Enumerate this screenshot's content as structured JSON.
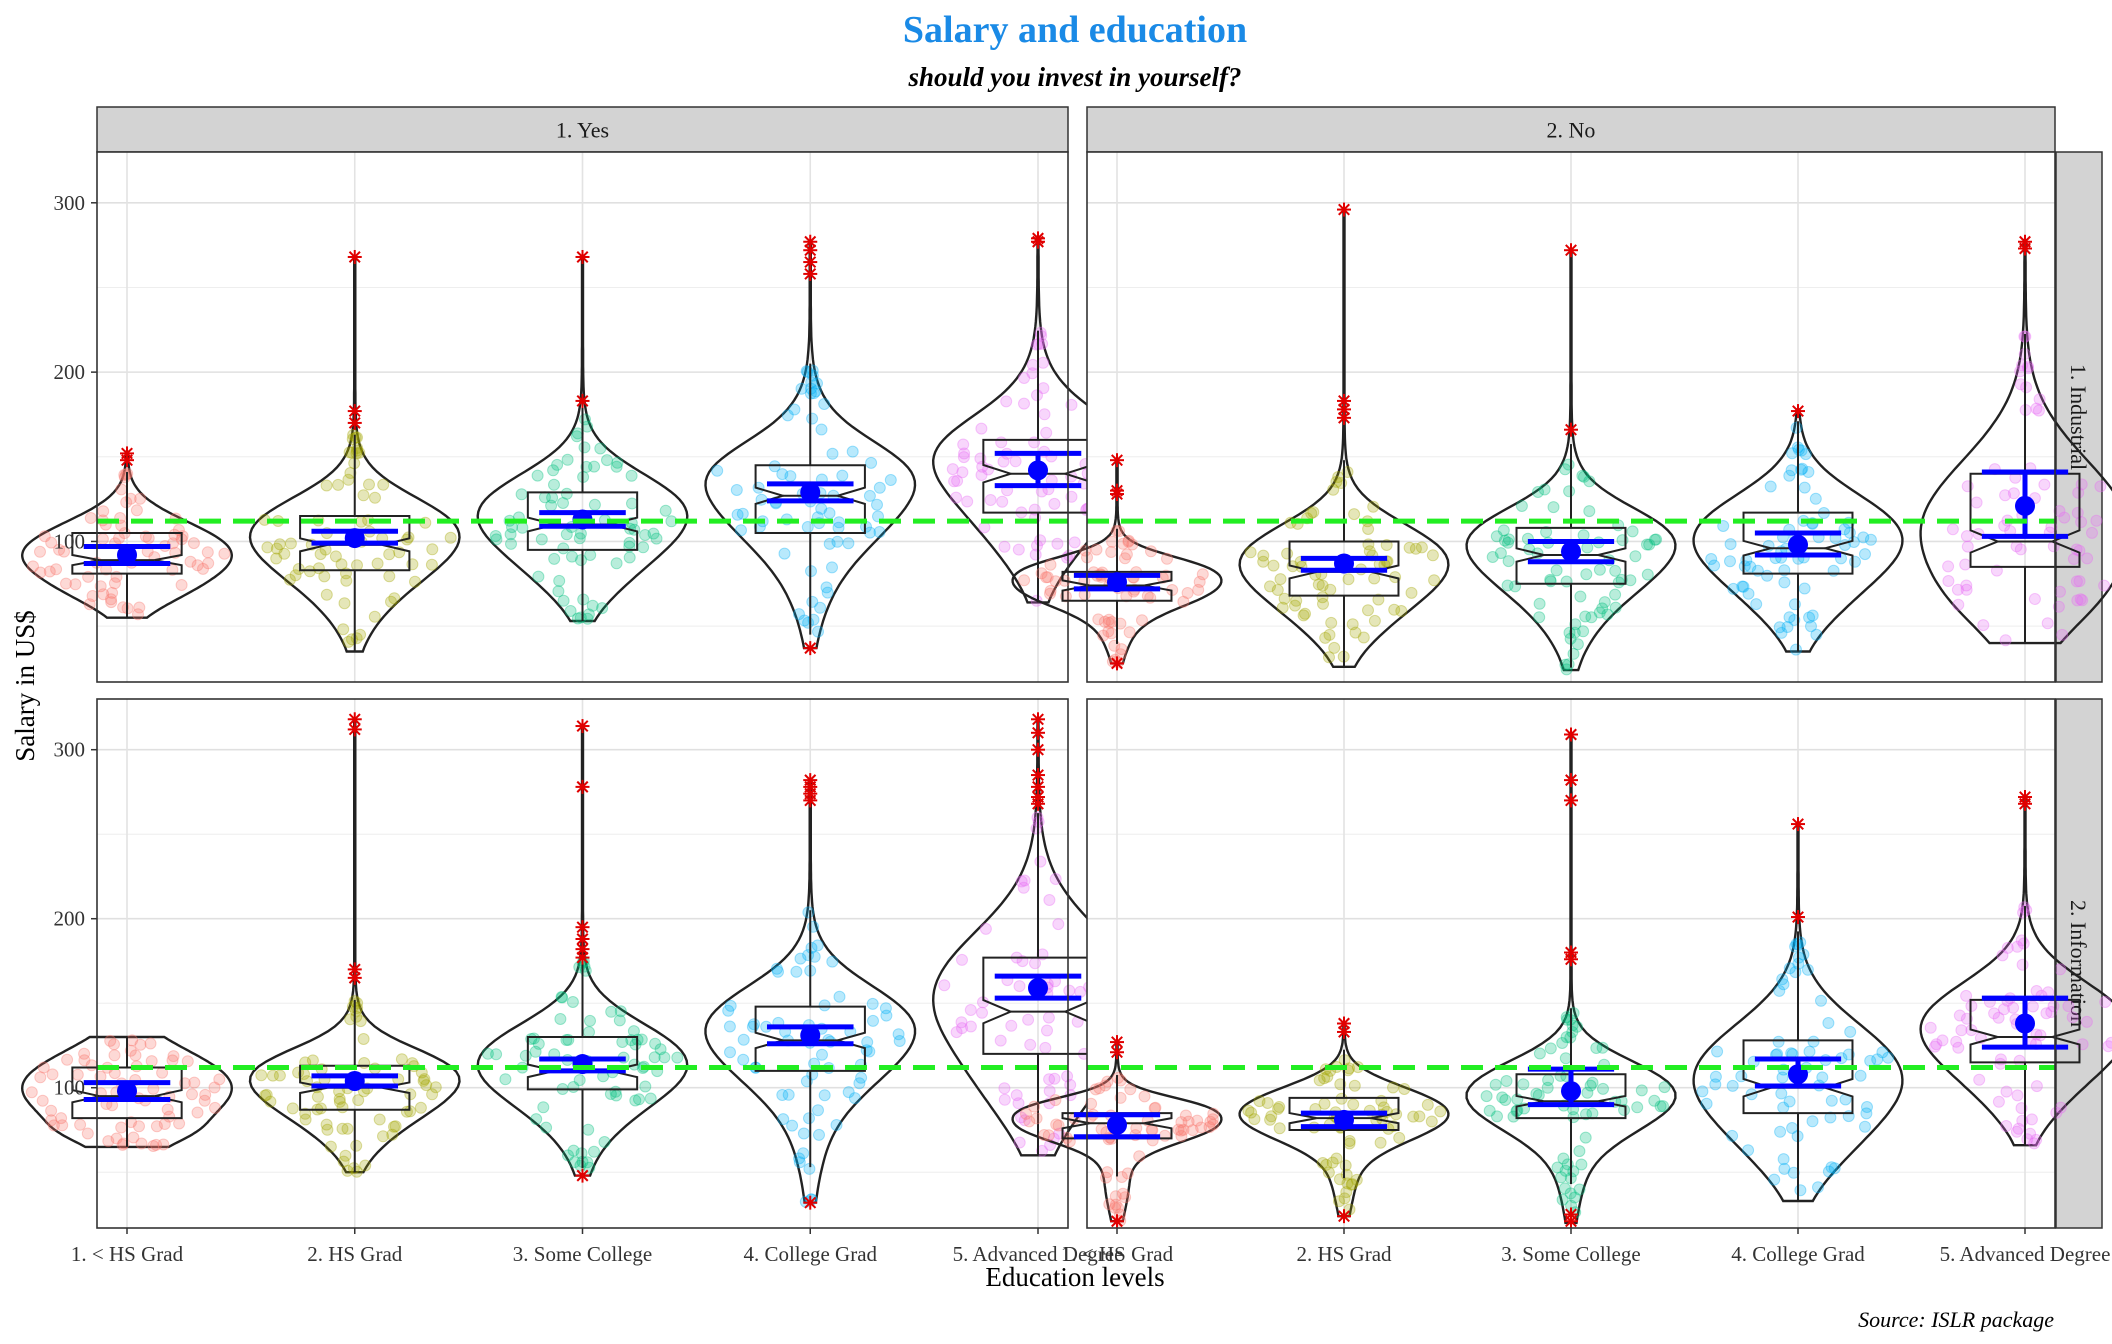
{
  "chart_data": {
    "type": "violin",
    "title": "Salary and education",
    "subtitle": "should you invest in yourself?",
    "xlabel": "Education levels",
    "ylabel": "Salary in US$",
    "caption": "Source: ISLR package",
    "categories": [
      "1. < HS Grad",
      "2. HS Grad",
      "3. Some College",
      "4. College Grad",
      "5. Advanced Degree"
    ],
    "facet_columns": [
      "1. Yes",
      "2. No"
    ],
    "facet_rows": [
      "1. Industrial",
      "2. Information"
    ],
    "y_ticks": [
      100,
      200,
      300
    ],
    "ylim": [
      17,
      330
    ],
    "reference_line": 112,
    "grid": true,
    "colors": {
      "title": "#1a8ae6",
      "categories": [
        "#f8766d",
        "#a3a500",
        "#00bf7d",
        "#00b0f6",
        "#e76bf3"
      ],
      "mean_bars": "#0000ff",
      "outliers": "#e00000",
      "reference_line": "#22ee22",
      "strip_fill": "#d3d3d3"
    },
    "panels": [
      {
        "col": "1. Yes",
        "row": "1. Industrial",
        "groups": [
          {
            "category": "1. < HS Grad",
            "min": 55,
            "max": 153,
            "q1": 81,
            "median": 89,
            "q3": 105,
            "mean": 92,
            "ci": [
              87,
              97
            ],
            "outliers": [
              148,
              152
            ]
          },
          {
            "category": "2. HS Grad",
            "min": 35,
            "max": 268,
            "q1": 83,
            "median": 98,
            "q3": 115,
            "mean": 102,
            "ci": [
              99,
              106
            ],
            "outliers": [
              268,
              177,
              170
            ]
          },
          {
            "category": "3. Some College",
            "min": 53,
            "max": 268,
            "q1": 95,
            "median": 110,
            "q3": 129,
            "mean": 113,
            "ci": [
              109,
              117
            ],
            "outliers": [
              268,
              183
            ]
          },
          {
            "category": "4. College Grad",
            "min": 37,
            "max": 277,
            "q1": 105,
            "median": 127,
            "q3": 145,
            "mean": 129,
            "ci": [
              124,
              134
            ],
            "outliers": [
              277,
              272,
              265,
              258,
              37
            ]
          },
          {
            "category": "5. Advanced Degree",
            "min": 64,
            "max": 280,
            "q1": 117,
            "median": 140,
            "q3": 160,
            "mean": 142,
            "ci": [
              133,
              152
            ],
            "outliers": [
              279,
              277
            ]
          }
        ]
      },
      {
        "col": "2. No",
        "row": "1. Industrial",
        "groups": [
          {
            "category": "1. < HS Grad",
            "min": 28,
            "max": 148,
            "q1": 65,
            "median": 74,
            "q3": 82,
            "mean": 76,
            "ci": [
              72,
              80
            ],
            "outliers": [
              148,
              130,
              128,
              28
            ]
          },
          {
            "category": "2. HS Grad",
            "min": 26,
            "max": 296,
            "q1": 68,
            "median": 82,
            "q3": 100,
            "mean": 87,
            "ci": [
              83,
              90
            ],
            "outliers": [
              296,
              183,
              178,
              173
            ]
          },
          {
            "category": "3. Some College",
            "min": 24,
            "max": 272,
            "q1": 75,
            "median": 92,
            "q3": 108,
            "mean": 94,
            "ci": [
              88,
              100
            ],
            "outliers": [
              272,
              166
            ]
          },
          {
            "category": "4. College Grad",
            "min": 35,
            "max": 178,
            "q1": 81,
            "median": 96,
            "q3": 117,
            "mean": 98,
            "ci": [
              92,
              105
            ],
            "outliers": [
              177
            ]
          },
          {
            "category": "5. Advanced Degree",
            "min": 40,
            "max": 278,
            "q1": 85,
            "median": 100,
            "q3": 140,
            "mean": 121,
            "ci": [
              103,
              141
            ],
            "outliers": [
              277,
              273
            ]
          }
        ]
      },
      {
        "col": "1. Yes",
        "row": "2. Information",
        "groups": [
          {
            "category": "1. < HS Grad",
            "min": 65,
            "max": 130,
            "q1": 82,
            "median": 95,
            "q3": 112,
            "mean": 98,
            "ci": [
              93,
              103
            ],
            "outliers": []
          },
          {
            "category": "2. HS Grad",
            "min": 50,
            "max": 318,
            "q1": 87,
            "median": 100,
            "q3": 113,
            "mean": 104,
            "ci": [
              101,
              107
            ],
            "outliers": [
              318,
              312,
              170,
              165
            ]
          },
          {
            "category": "3. Some College",
            "min": 48,
            "max": 314,
            "q1": 99,
            "median": 110,
            "q3": 130,
            "mean": 114,
            "ci": [
              110,
              117
            ],
            "outliers": [
              314,
              278,
              195,
              188,
              182,
              177,
              48
            ]
          },
          {
            "category": "4. College Grad",
            "min": 32,
            "max": 282,
            "q1": 110,
            "median": 128,
            "q3": 148,
            "mean": 131,
            "ci": [
              126,
              136
            ],
            "outliers": [
              282,
              278,
              274,
              270,
              32
            ]
          },
          {
            "category": "5. Advanced Degree",
            "min": 60,
            "max": 318,
            "q1": 120,
            "median": 145,
            "q3": 177,
            "mean": 159,
            "ci": [
              153,
              166
            ],
            "outliers": [
              318,
              310,
              300,
              285,
              278,
              272,
              268
            ]
          }
        ]
      },
      {
        "col": "2. No",
        "row": "2. Information",
        "groups": [
          {
            "category": "1. < HS Grad",
            "min": 21,
            "max": 127,
            "q1": 70,
            "median": 79,
            "q3": 85,
            "mean": 78,
            "ci": [
              71,
              84
            ],
            "outliers": [
              127,
              121,
              21
            ]
          },
          {
            "category": "2. HS Grad",
            "min": 24,
            "max": 138,
            "q1": 75,
            "median": 82,
            "q3": 94,
            "mean": 81,
            "ci": [
              77,
              85
            ],
            "outliers": [
              138,
              133,
              24
            ]
          },
          {
            "category": "3. Some College",
            "min": 20,
            "max": 309,
            "q1": 82,
            "median": 92,
            "q3": 108,
            "mean": 98,
            "ci": [
              90,
              111
            ],
            "outliers": [
              309,
              282,
              270,
              180,
              176,
              25,
              21
            ]
          },
          {
            "category": "4. College Grad",
            "min": 33,
            "max": 256,
            "q1": 85,
            "median": 100,
            "q3": 128,
            "mean": 108,
            "ci": [
              101,
              117
            ],
            "outliers": [
              256,
              201
            ]
          },
          {
            "category": "5. Advanced Degree",
            "min": 66,
            "max": 272,
            "q1": 115,
            "median": 130,
            "q3": 152,
            "mean": 138,
            "ci": [
              124,
              153
            ],
            "outliers": [
              272,
              268
            ]
          }
        ]
      }
    ]
  }
}
